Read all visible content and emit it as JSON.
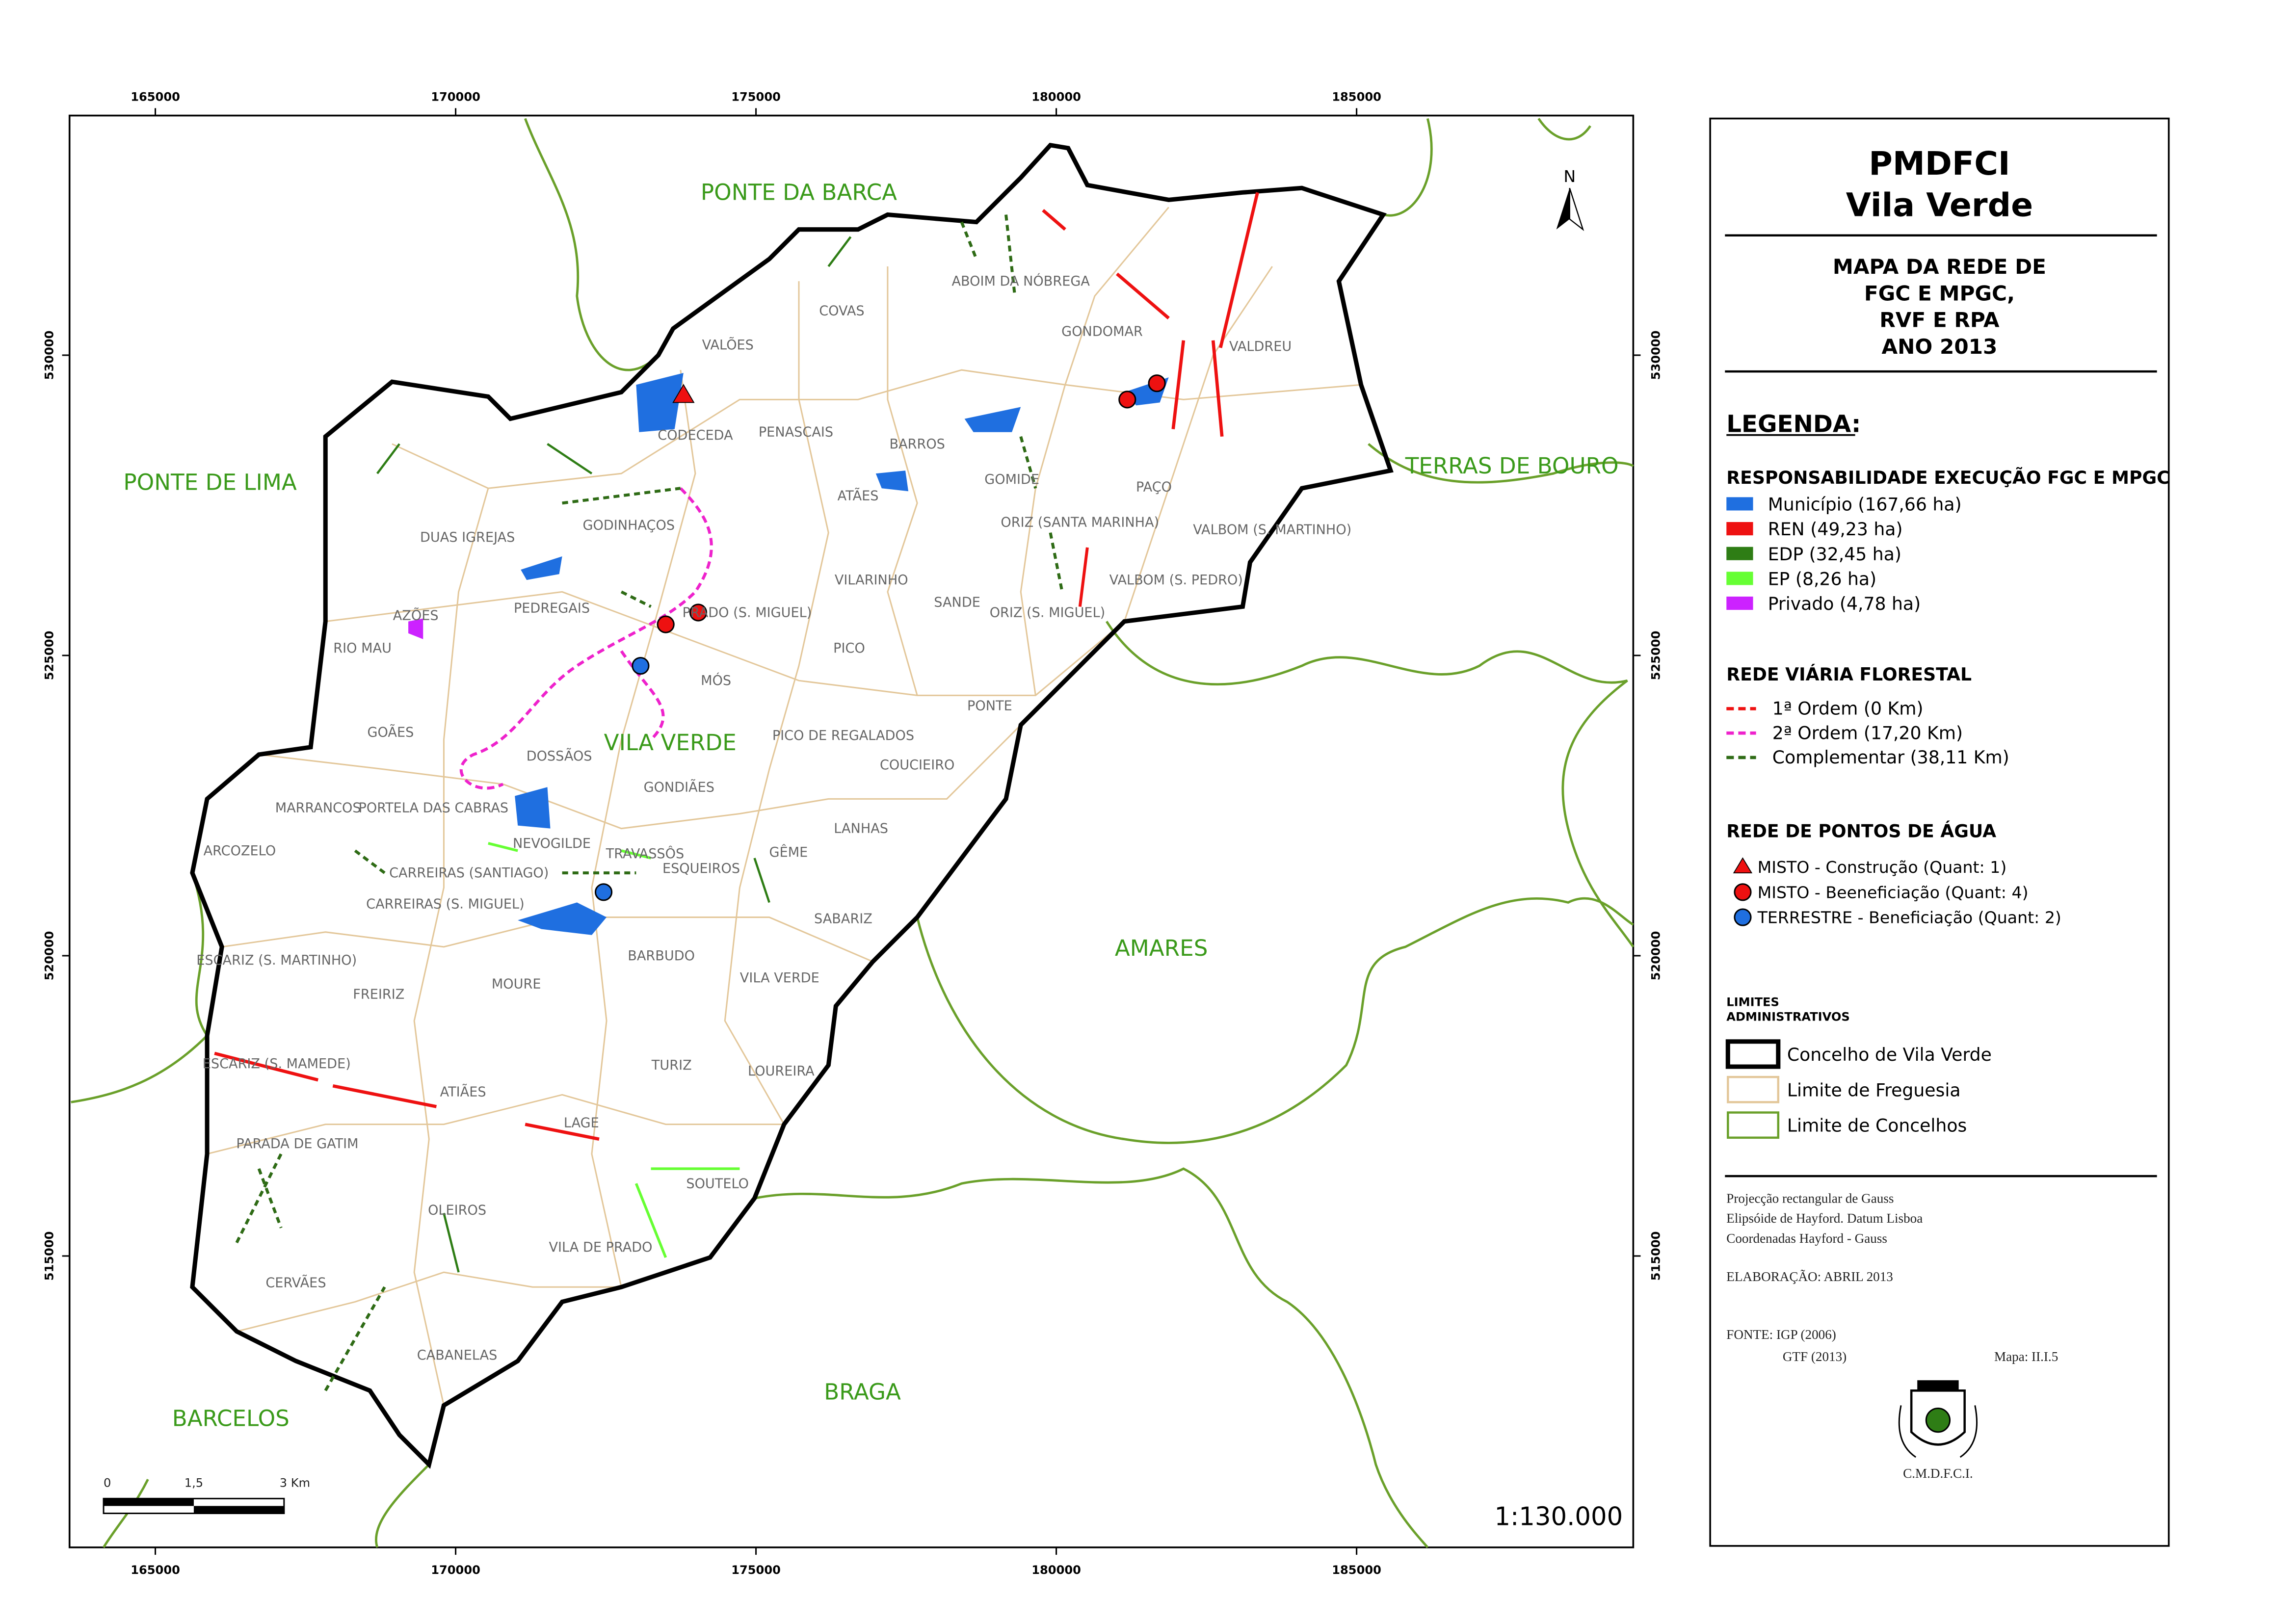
{
  "map": {
    "x_ticks": [
      165000,
      170000,
      175000,
      180000,
      185000
    ],
    "y_ticks": [
      530000,
      525000,
      520000,
      515000
    ],
    "regions": [
      "PONTE DA BARCA",
      "PONTE DE LIMA",
      "TERRAS DE BOURO",
      "AMARES",
      "BRAGA",
      "BARCELOS",
      "VILA VERDE"
    ],
    "parishes": [
      "VALÕES",
      "COVAS",
      "ABOIM DA NÓBREGA",
      "GONDOMAR",
      "VALDREU",
      "CODECEDA",
      "PENASCAIS",
      "BARROS",
      "GOMIDE",
      "PAÇO",
      "ATÃES",
      "DUAS IGREJAS",
      "GODINHAÇOS",
      "ORIZ (SANTA MARINHA)",
      "VALBOM (S. MARTINHO)",
      "VILARINHO",
      "VALBOM (S. PEDRO)",
      "PEDREGAIS",
      "PRADO (S. MIGUEL)",
      "SANDE",
      "ORIZ (S. MIGUEL)",
      "AZÕES",
      "RIO MAU",
      "PICO",
      "MÓS",
      "PONTE",
      "GOÃES",
      "PICO DE REGALADOS",
      "DOSSÃOS",
      "COUCIEIRO",
      "GONDIÃES",
      "MARRANCOS",
      "PORTELA DAS CABRAS",
      "LANHAS",
      "NEVOGILDE",
      "TRAVASSÔS",
      "GÊME",
      "ESQUEIROS",
      "ARCOZELO",
      "CARREIRAS (SANTIAGO)",
      "CARREIRAS (S. MIGUEL)",
      "SABARIZ",
      "BARBUDO",
      "ESCARIZ (S. MARTINHO)",
      "VILA VERDE",
      "FREIRIZ",
      "MOURE",
      "ESCARIZ (S. MAMEDE)",
      "TURIZ",
      "LOUREIRA",
      "ATIÃES",
      "LAGE",
      "PARADA DE GATIM",
      "SOUTELO",
      "OLEIROS",
      "VILA DE PRADO",
      "CERVÃES",
      "CABANELAS"
    ],
    "north": "N",
    "scale_bar": [
      "0",
      "1,5",
      "3  Km"
    ],
    "scale": "1:130.000"
  },
  "panel": {
    "title": [
      "PMDFCI",
      "Vila Verde"
    ],
    "subtitle": [
      "MAPA DA REDE DE",
      "FGC E MPGC,",
      "RVF E RPA",
      "ANO 2013"
    ],
    "legend_heading": "LEGENDA:",
    "sections": [
      {
        "title": "RESPONSABILIDADE EXECUÇÃO FGC E MPGC",
        "items": [
          {
            "label": "Município (167,66 ha)",
            "color": "#1f6fe0"
          },
          {
            "label": "REN (49,23 ha)",
            "color": "#ee1111"
          },
          {
            "label": "EDP (32,45 ha)",
            "color": "#2e7d15"
          },
          {
            "label": "EP (8,26 ha)",
            "color": "#66ff33"
          },
          {
            "label": "Privado (4,78 ha)",
            "color": "#cc22ff"
          }
        ]
      },
      {
        "title": "REDE VIÁRIA FLORESTAL",
        "items": [
          {
            "label": "1ª Ordem (0 Km)",
            "color": "#ee1111"
          },
          {
            "label": "2ª Ordem (17,20 Km)",
            "color": "#ee22cc"
          },
          {
            "label": "Complementar (38,11 Km)",
            "color": "#2e6b15"
          }
        ]
      },
      {
        "title": "REDE DE PONTOS DE ÁGUA",
        "items": [
          {
            "label": "MISTO - Construção (Quant: 1)",
            "color": "#ee1111"
          },
          {
            "label": "MISTO - Beeneficiação (Quant: 4)",
            "color": "#ee1111"
          },
          {
            "label": "TERRESTRE - Beneficiação (Quant: 2)",
            "color": "#1f6fe0"
          }
        ]
      }
    ],
    "limits_title": [
      "LIMITES",
      "ADMINISTRATIVOS"
    ],
    "limits": [
      {
        "label": "Concelho de Vila Verde",
        "color": "#000000"
      },
      {
        "label": "Limite de Freguesia",
        "color": "#e3c79a"
      },
      {
        "label": "Limite de Concelhos",
        "color": "#6aa02a"
      }
    ],
    "notes": [
      "Projecção rectangular de Gauss",
      "Elipsóide de Hayford. Datum Lisboa",
      "Coordenadas Hayford - Gauss"
    ],
    "elaboration": "ELABORAÇÃO: ABRIL 2013",
    "source": [
      "FONTE: IGP (2006)",
      "GTF (2013)"
    ],
    "map_id": "Mapa: II.I.5",
    "footer": "C.M.D.F.C.I."
  }
}
